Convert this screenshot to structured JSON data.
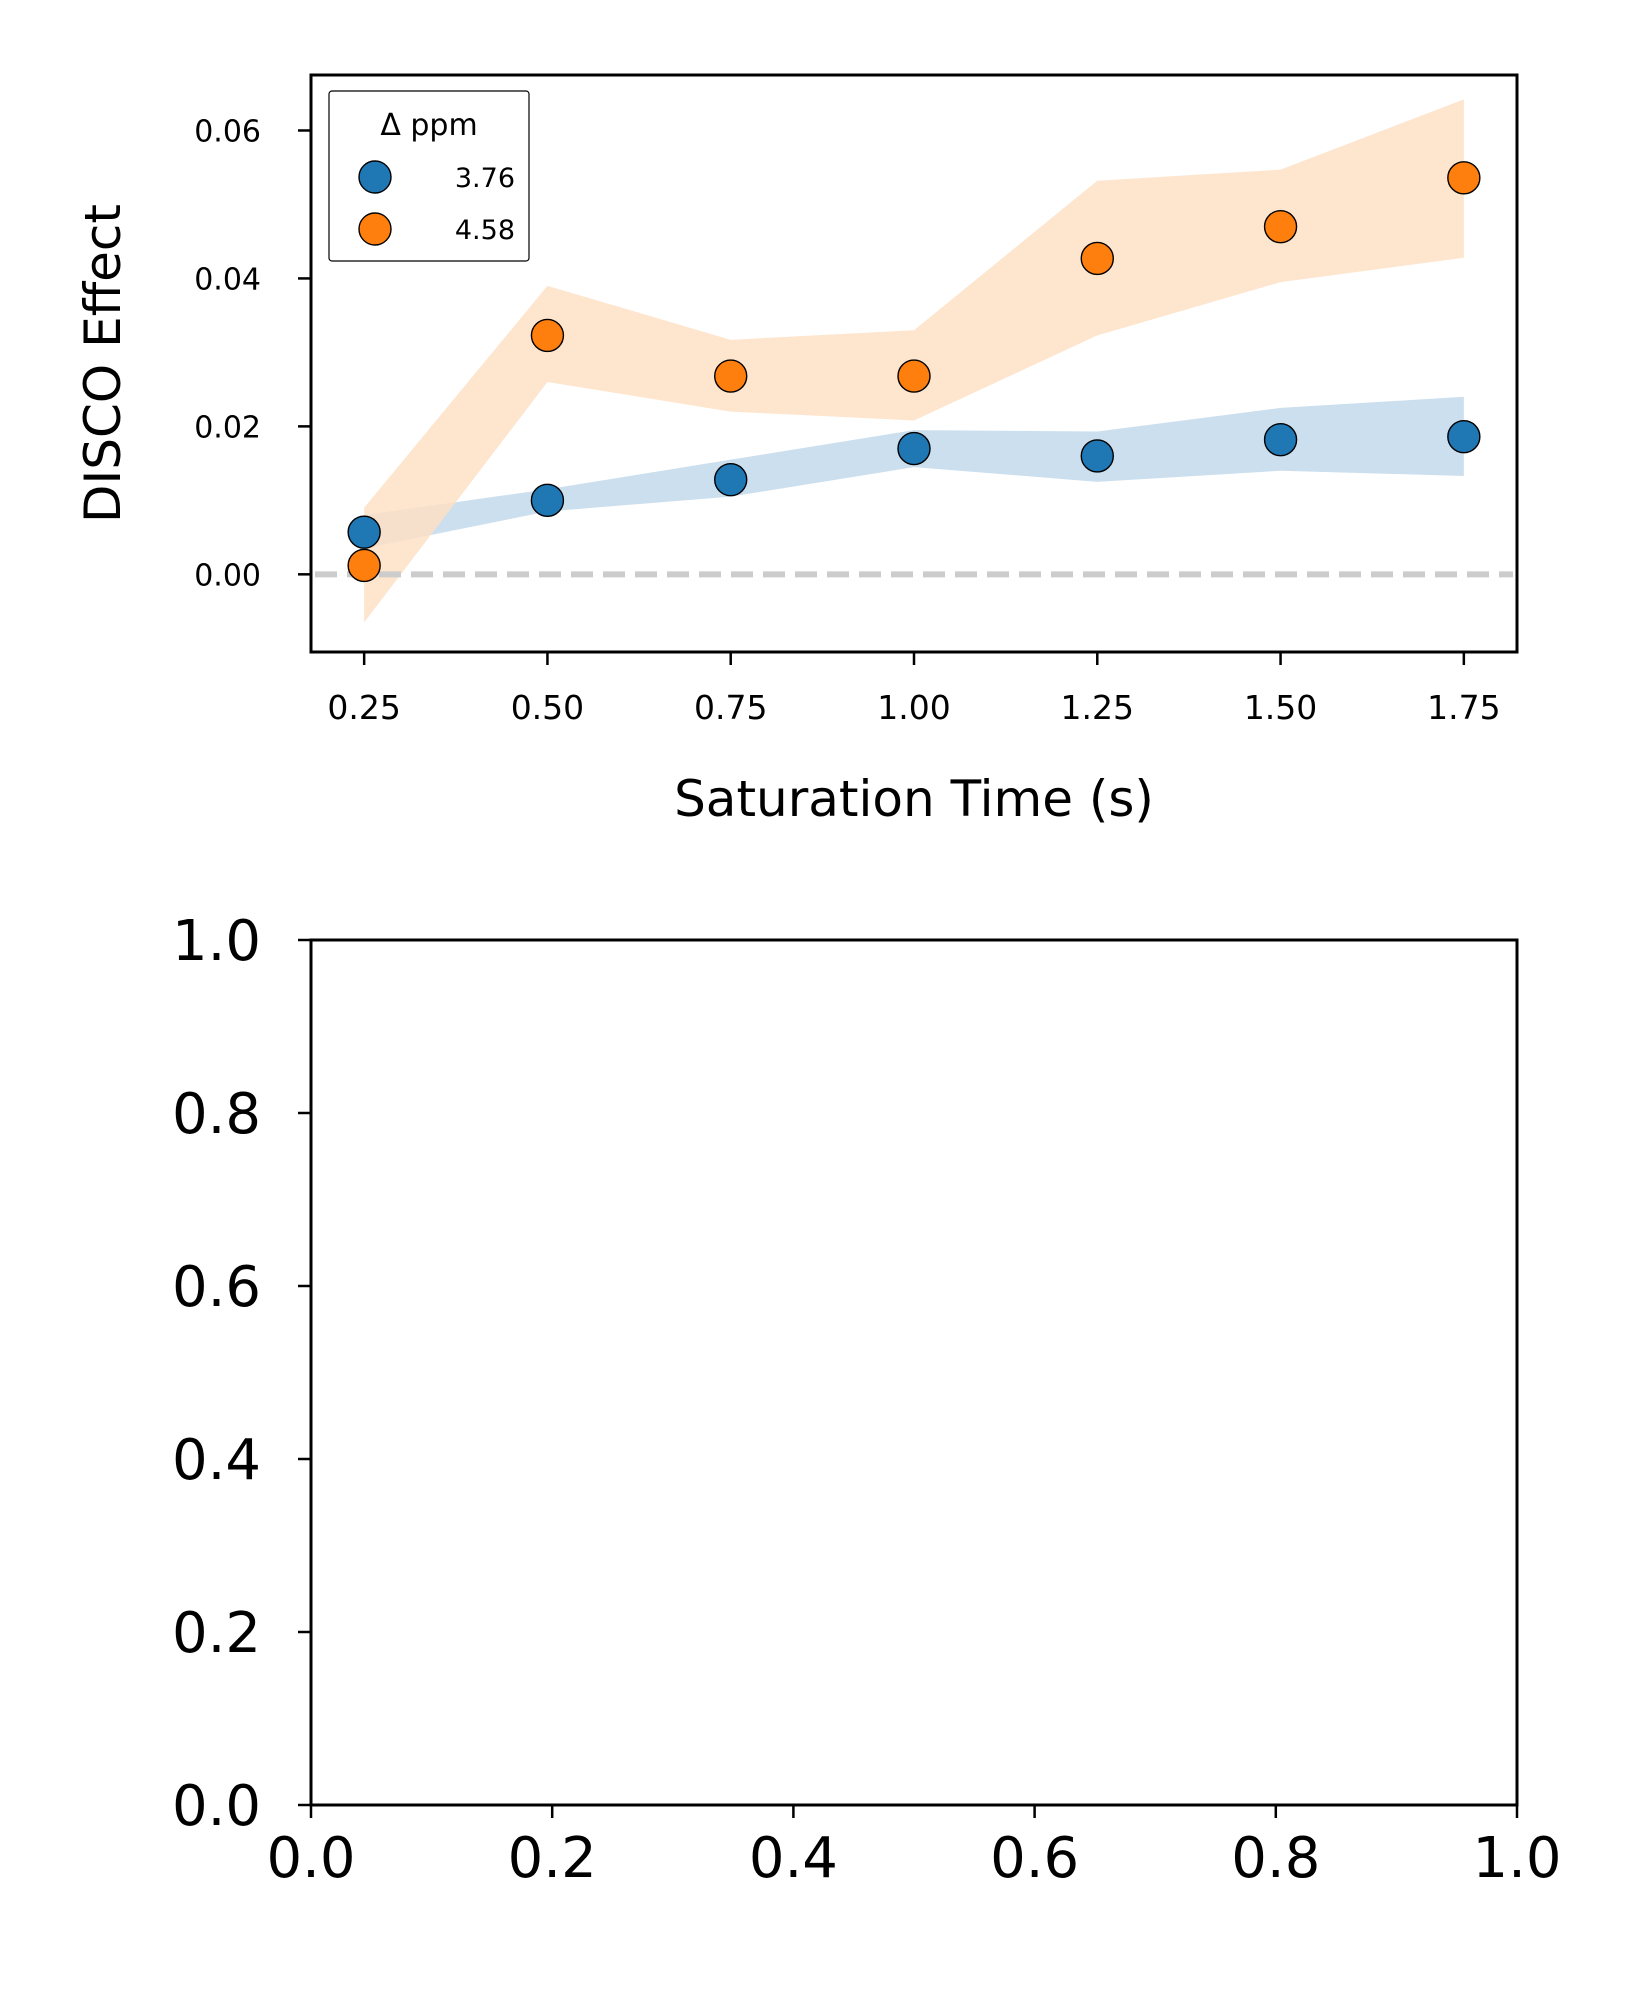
{
  "chart_data": [
    {
      "type": "scatter",
      "title": "",
      "xlabel": "Saturation Time (s)",
      "ylabel": "DISCO Effect",
      "xlim": [
        0.1775,
        1.8225
      ],
      "ylim": [
        -0.0105,
        0.0675
      ],
      "xticks": [
        0.25,
        0.5,
        0.75,
        1.0,
        1.25,
        1.5,
        1.75
      ],
      "xtick_labels": [
        "0.25",
        "0.50",
        "0.75",
        "1.00",
        "1.25",
        "1.50",
        "1.75"
      ],
      "yticks": [
        0.0,
        0.02,
        0.04,
        0.06
      ],
      "ytick_labels": [
        "0.00",
        "0.02",
        "0.04",
        "0.06"
      ],
      "grid": false,
      "reference_line": {
        "y": 0.0,
        "style": "dashed",
        "color": "#cccccc"
      },
      "legend": {
        "title": "Δ ppm",
        "placement": "top-left"
      },
      "x": [
        0.25,
        0.5,
        0.75,
        1.0,
        1.25,
        1.5,
        1.75
      ],
      "series": [
        {
          "name": "3.76",
          "color": "#1f77b4",
          "band_color": "#c6dbec",
          "values": [
            0.0057,
            0.01,
            0.0128,
            0.017,
            0.016,
            0.0182,
            0.0186
          ],
          "band_lower": [
            0.0035,
            0.0085,
            0.0105,
            0.0145,
            0.0125,
            0.014,
            0.0133
          ],
          "band_upper": [
            0.008,
            0.0115,
            0.0155,
            0.0195,
            0.0193,
            0.0225,
            0.024
          ]
        },
        {
          "name": "4.58",
          "color": "#ff7f0e",
          "band_color": "#fde0c5",
          "values": [
            0.0012,
            0.0323,
            0.0268,
            0.0268,
            0.0427,
            0.047,
            0.0536
          ],
          "band_lower": [
            -0.0065,
            0.026,
            0.022,
            0.0208,
            0.0323,
            0.0395,
            0.0428
          ],
          "band_upper": [
            0.009,
            0.039,
            0.0317,
            0.033,
            0.0532,
            0.0547,
            0.0642
          ]
        }
      ]
    },
    {
      "type": "scatter",
      "title": "",
      "xlabel": "",
      "ylabel": "",
      "xlim": [
        0,
        1
      ],
      "ylim": [
        0,
        1
      ],
      "xticks": [
        0,
        0.2,
        0.4,
        0.6,
        0.8,
        1.0
      ],
      "xtick_labels": [
        "0.0",
        "0.2",
        "0.4",
        "0.6",
        "0.8",
        "1.0"
      ],
      "yticks": [
        0,
        0.2,
        0.4,
        0.6,
        0.8,
        1.0
      ],
      "ytick_labels": [
        "0.0",
        "0.2",
        "0.4",
        "0.6",
        "0.8",
        "1.0"
      ],
      "grid": false,
      "series": []
    }
  ]
}
